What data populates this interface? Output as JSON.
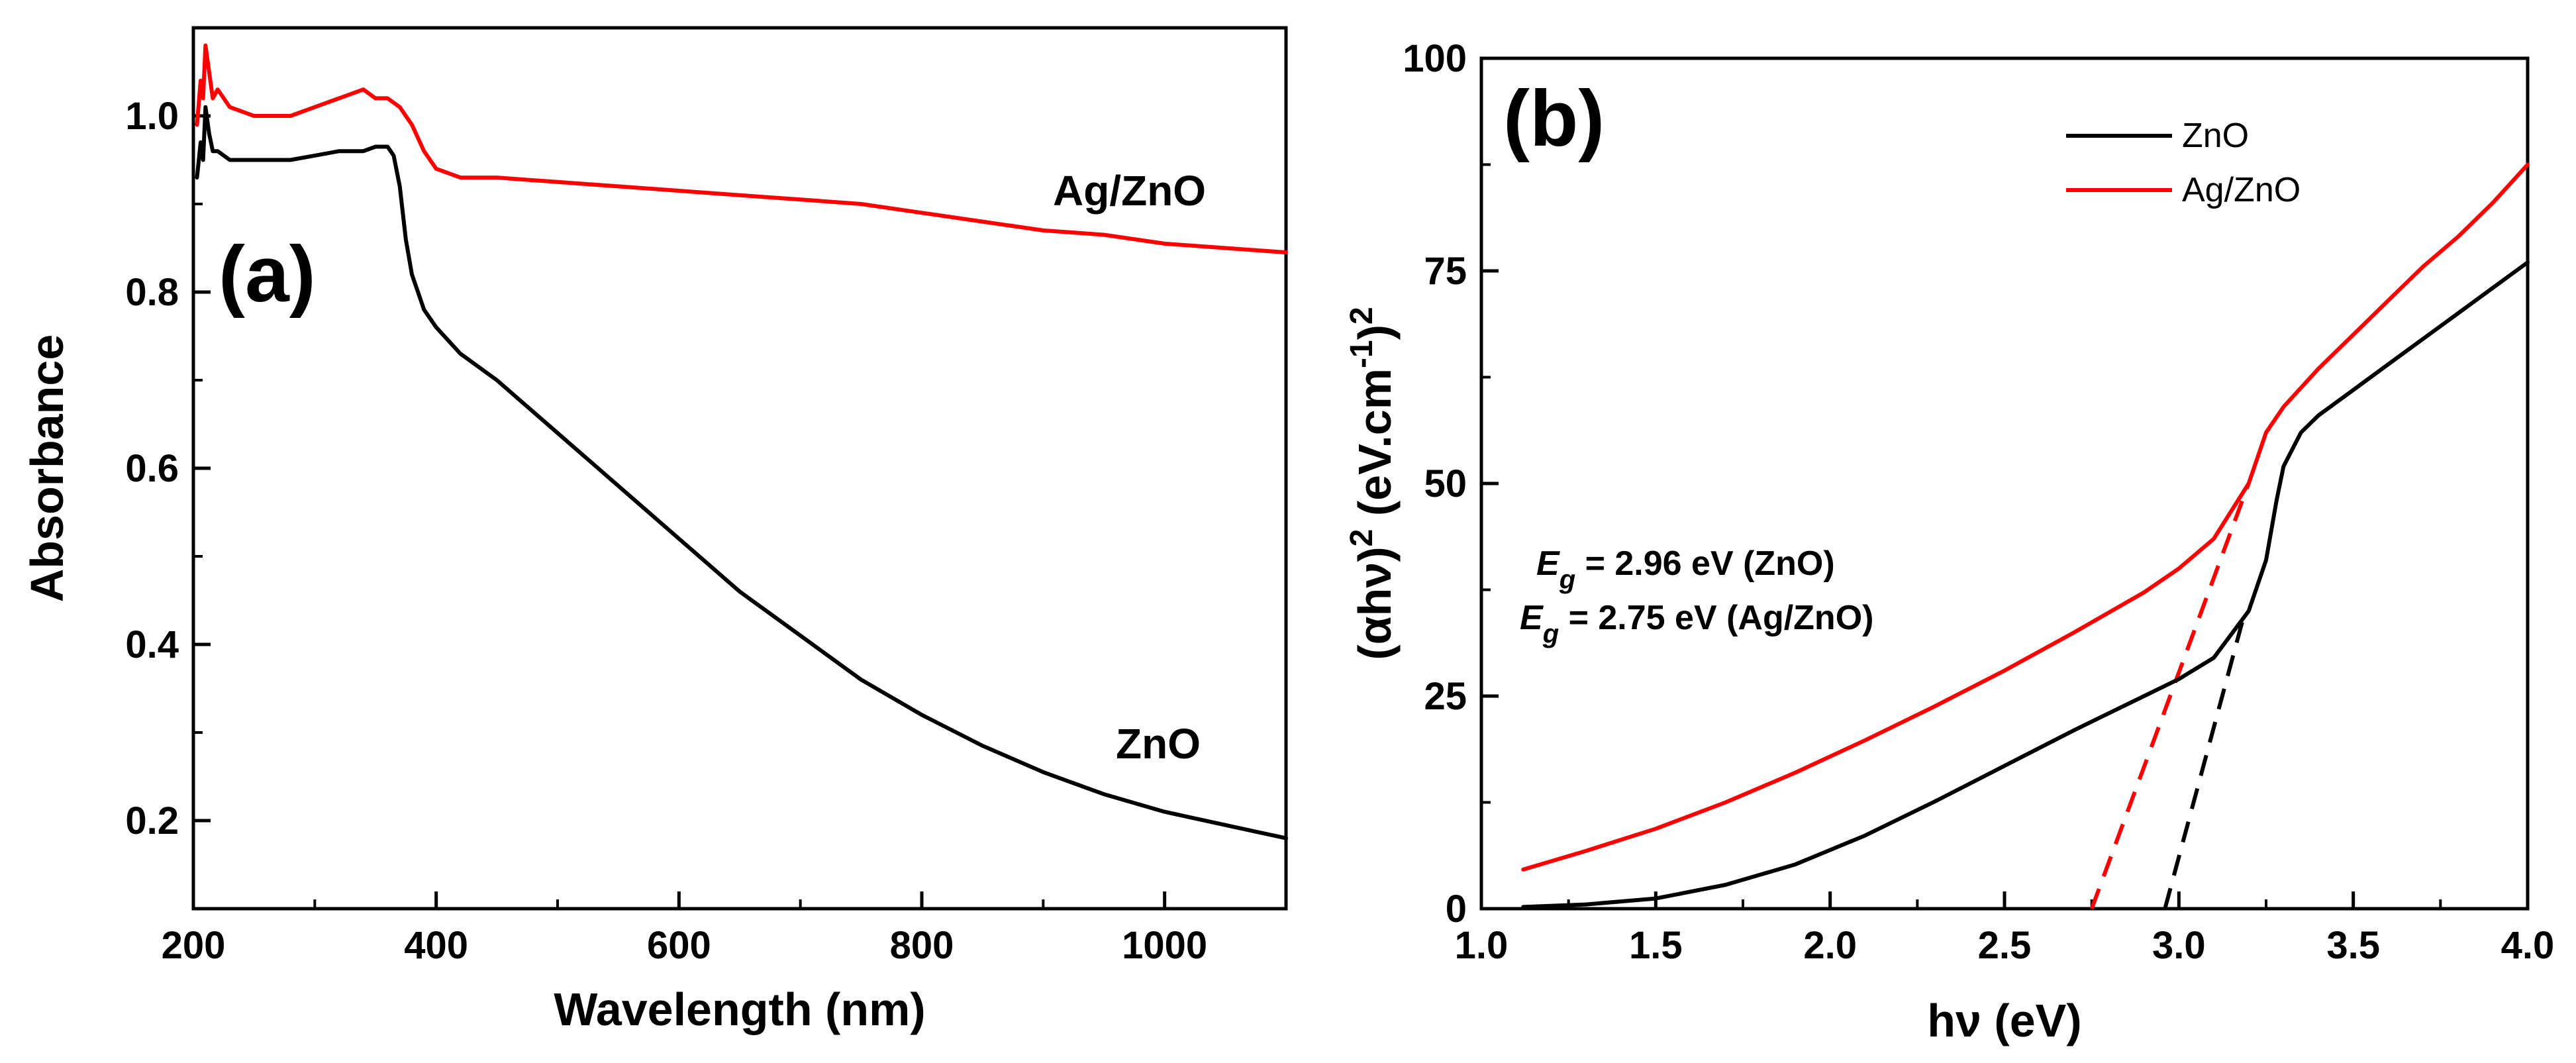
{
  "colors": {
    "zno": "#000000",
    "agzno": "#ff0000"
  },
  "chart_data": [
    {
      "panel": "a",
      "type": "line",
      "panel_label": "(a)",
      "title": "",
      "xlabel": "Wavelength (nm)",
      "ylabel": "Absorbance",
      "xlim": [
        200,
        1100
      ],
      "ylim": [
        0.1,
        1.1
      ],
      "xticks": [
        200,
        400,
        600,
        800,
        1000
      ],
      "xtick_labels": [
        "200",
        "400",
        "600",
        "800",
        "1000"
      ],
      "yticks": [
        0.2,
        0.4,
        0.6,
        0.8,
        1.0
      ],
      "ytick_labels": [
        "0.2",
        "0.4",
        "0.6",
        "0.8",
        "1.0"
      ],
      "series": [
        {
          "name": "Ag/ZnO",
          "label": "Ag/ZnO",
          "color": "#ff0000",
          "x": [
            203,
            206,
            208,
            210,
            213,
            216,
            220,
            230,
            250,
            280,
            300,
            320,
            340,
            350,
            360,
            370,
            380,
            390,
            400,
            420,
            450,
            500,
            550,
            600,
            650,
            700,
            750,
            800,
            850,
            900,
            950,
            1000,
            1050,
            1100
          ],
          "y": [
            0.99,
            1.04,
            1.02,
            1.08,
            1.05,
            1.02,
            1.03,
            1.01,
            1.0,
            1.0,
            1.01,
            1.02,
            1.03,
            1.02,
            1.02,
            1.01,
            0.99,
            0.96,
            0.94,
            0.93,
            0.93,
            0.925,
            0.92,
            0.915,
            0.91,
            0.905,
            0.9,
            0.89,
            0.88,
            0.87,
            0.865,
            0.855,
            0.85,
            0.845
          ]
        },
        {
          "name": "ZnO",
          "label": "ZnO",
          "color": "#000000",
          "x": [
            203,
            206,
            208,
            210,
            213,
            216,
            220,
            230,
            250,
            280,
            300,
            320,
            340,
            350,
            360,
            365,
            370,
            375,
            380,
            385,
            390,
            400,
            420,
            450,
            500,
            550,
            600,
            650,
            700,
            750,
            800,
            850,
            900,
            950,
            1000,
            1050,
            1100
          ],
          "y": [
            0.93,
            0.97,
            0.95,
            1.01,
            0.98,
            0.96,
            0.96,
            0.95,
            0.95,
            0.95,
            0.955,
            0.96,
            0.96,
            0.965,
            0.965,
            0.955,
            0.92,
            0.86,
            0.82,
            0.8,
            0.78,
            0.76,
            0.73,
            0.7,
            0.64,
            0.58,
            0.52,
            0.46,
            0.41,
            0.36,
            0.32,
            0.285,
            0.255,
            0.23,
            0.21,
            0.195,
            0.18
          ]
        }
      ]
    },
    {
      "panel": "b",
      "type": "line",
      "panel_label": "(b)",
      "title": "",
      "xlabel": "hν (eV)",
      "ylabel": "(αhν)2 (eV.cm-1)2",
      "ylabel_parts": [
        "(αhν)",
        "2",
        " (eV.cm",
        "-1",
        ")",
        "2"
      ],
      "xlim": [
        1.0,
        4.0
      ],
      "ylim": [
        0,
        100
      ],
      "xticks": [
        1.0,
        1.5,
        2.0,
        2.5,
        3.0,
        3.5,
        4.0
      ],
      "xtick_labels": [
        "1.0",
        "1.5",
        "2.0",
        "2.5",
        "3.0",
        "3.5",
        "4.0"
      ],
      "yticks": [
        0,
        25,
        50,
        75,
        100
      ],
      "ytick_labels": [
        "0",
        "25",
        "50",
        "75",
        "100"
      ],
      "legend": {
        "position": "top-right",
        "entries": [
          "ZnO",
          "Ag/ZnO"
        ]
      },
      "annotations": [
        {
          "symbol": "E",
          "subscript": "g",
          "text": " = 2.96 eV (ZnO)"
        },
        {
          "symbol": "E",
          "subscript": "g",
          "text": " = 2.75 eV (Ag/ZnO)"
        }
      ],
      "series": [
        {
          "name": "ZnO",
          "color": "#000000",
          "x": [
            1.12,
            1.3,
            1.5,
            1.7,
            1.9,
            2.1,
            2.3,
            2.5,
            2.7,
            2.9,
            3.0,
            3.1,
            3.2,
            3.25,
            3.28,
            3.3,
            3.35,
            3.4,
            3.5,
            3.6,
            3.7,
            3.8,
            3.9,
            4.0
          ],
          "y": [
            0.2,
            0.5,
            1.2,
            2.8,
            5.2,
            8.6,
            12.6,
            16.8,
            21.0,
            25.0,
            27.0,
            29.5,
            35.0,
            41.0,
            48.0,
            52.0,
            56.0,
            58.0,
            61.0,
            64.0,
            67.0,
            70.0,
            73.0,
            76.0
          ]
        },
        {
          "name": "Ag/ZnO",
          "color": "#ff0000",
          "x": [
            1.12,
            1.3,
            1.5,
            1.7,
            1.9,
            2.1,
            2.3,
            2.5,
            2.7,
            2.9,
            3.0,
            3.1,
            3.2,
            3.25,
            3.3,
            3.4,
            3.5,
            3.6,
            3.7,
            3.8,
            3.9,
            4.0
          ],
          "y": [
            4.6,
            6.8,
            9.4,
            12.5,
            16.0,
            19.8,
            23.8,
            28.0,
            32.5,
            37.2,
            40.0,
            43.5,
            50.0,
            56.0,
            59.0,
            63.5,
            67.5,
            71.5,
            75.5,
            79.0,
            83.0,
            87.5
          ]
        }
      ],
      "fit_lines": [
        {
          "name": "ZnO fit",
          "color": "#000000",
          "x": [
            2.96,
            3.19
          ],
          "y": [
            0,
            35
          ]
        },
        {
          "name": "Ag/ZnO fit",
          "color": "#ff0000",
          "x": [
            2.75,
            3.2
          ],
          "y": [
            0,
            50
          ]
        }
      ]
    }
  ]
}
